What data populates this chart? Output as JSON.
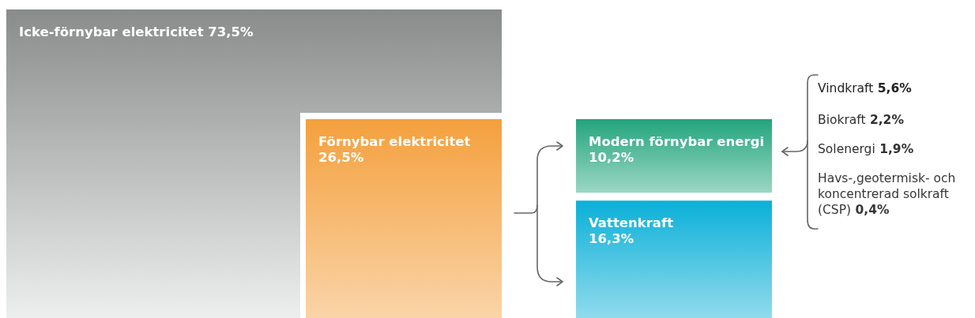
{
  "chart_data": {
    "type": "other",
    "categories": [
      "Icke-förnybar elektricitet",
      "Förnybar elektricitet",
      "Modern förnybar energi",
      "Vattenkraft",
      "Vindkraft",
      "Biokraft",
      "Solenergi",
      "Havs-,geotermisk- och koncentrerad solkraft (CSP)"
    ],
    "values": [
      73.5,
      26.5,
      10.2,
      16.3,
      5.6,
      2.2,
      1.9,
      0.4
    ],
    "value_labels": [
      "73,5%",
      "26,5%",
      "10,2%",
      "16,3%",
      "5,6%",
      "2,2%",
      "1,9%",
      "0,4%"
    ],
    "colors": [
      "#8a8c8b",
      "#f4a03d",
      "#22a57c",
      "#0ab0d8",
      "#222222",
      "#222222",
      "#222222",
      "#222222"
    ]
  }
}
